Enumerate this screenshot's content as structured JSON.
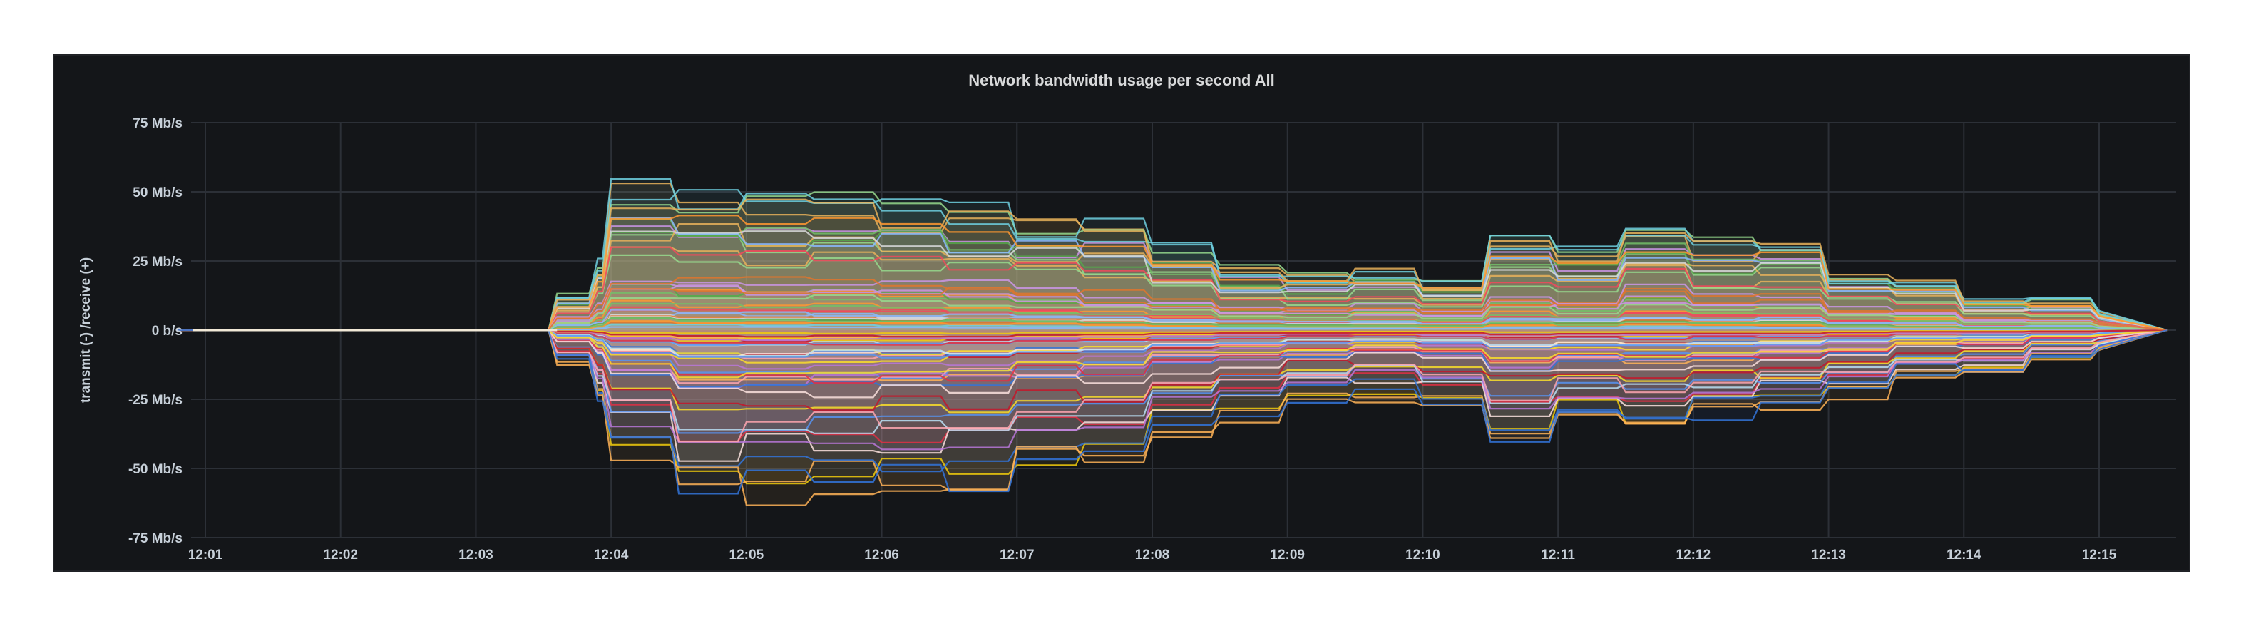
{
  "panel": {
    "title": "Network bandwidth usage per second All"
  },
  "chart_data": {
    "type": "area",
    "title": "Network bandwidth usage per second All",
    "ylabel": "transmit (-) /receive (+)",
    "xlabel": "",
    "x_ticks": [
      "12:01",
      "12:02",
      "12:03",
      "12:04",
      "12:05",
      "12:06",
      "12:07",
      "12:08",
      "12:09",
      "12:10",
      "12:11",
      "12:12",
      "12:13",
      "12:14",
      "12:15"
    ],
    "y_ticks": [
      "75 Mb/s",
      "50 Mb/s",
      "25 Mb/s",
      "0 b/s",
      "-25 Mb/s",
      "-50 Mb/s",
      "-75 Mb/s"
    ],
    "y_tick_values": [
      75,
      50,
      25,
      0,
      -25,
      -50,
      -75
    ],
    "ylim": [
      -75,
      75
    ],
    "xlim_minutes": [
      12.0,
      15.6
    ],
    "series_count_estimate": 80,
    "envelope": {
      "time": [
        "12:03.3",
        "12:03.6",
        "12:03.9",
        "12:04.0",
        "12:04.5",
        "12:05.0",
        "12:05.5",
        "12:06.0",
        "12:06.5",
        "12:07.0",
        "12:07.5",
        "12:08.0",
        "12:08.5",
        "12:09.0",
        "12:09.5",
        "12:10.0",
        "12:10.5",
        "12:11.0",
        "12:11.5",
        "12:12.0",
        "12:12.5",
        "12:13.0",
        "12:13.5",
        "12:14.0",
        "12:14.5",
        "12:15.0",
        "12:15.5"
      ],
      "receive_max": [
        0,
        15,
        30,
        63,
        60,
        57,
        56,
        53,
        52,
        48,
        44,
        36,
        28,
        25,
        27,
        22,
        40,
        35,
        47,
        38,
        39,
        25,
        22,
        14,
        13,
        8,
        0
      ],
      "transmit_min": [
        0,
        -14,
        -28,
        -53,
        -70,
        -68,
        -67,
        -66,
        -64,
        -57,
        -55,
        -42,
        -37,
        -30,
        -28,
        -32,
        -45,
        -38,
        -40,
        -36,
        -34,
        -28,
        -20,
        -19,
        -12,
        -9,
        0
      ]
    },
    "legend": "none",
    "grid": true
  },
  "colors": {
    "panel_bg": "#141619",
    "grid": "#2c3037",
    "text": "#c7d0d9",
    "series_palette": [
      "#e8b15a",
      "#5794f2",
      "#73bf69",
      "#f2cc0c",
      "#ff9830",
      "#b877d9",
      "#8ab8ff",
      "#ffb357",
      "#96d98d",
      "#fade2a",
      "#ca95e5",
      "#c4162a",
      "#e0752d",
      "#3274d9",
      "#56a64b",
      "#e02f44",
      "#f2495c",
      "#ffa6b0",
      "#6ed0e0",
      "#fce2de",
      "#d8d9da",
      "#badff4"
    ]
  }
}
